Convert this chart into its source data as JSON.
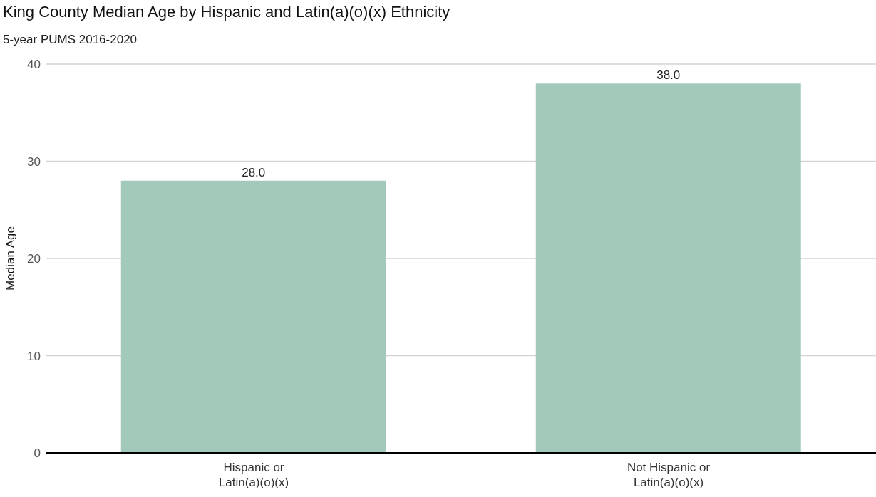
{
  "chart_data": {
    "type": "bar",
    "title": "King County Median Age by Hispanic and Latin(a)(o)(x) Ethnicity",
    "subtitle": "5-year PUMS 2016-2020",
    "ylabel": "Median Age",
    "categories": [
      "Hispanic or Latin(a)(o)(x)",
      "Not Hispanic or Latin(a)(o)(x)"
    ],
    "values": [
      28,
      38
    ],
    "value_labels": [
      "28.0",
      "38.0"
    ],
    "color": "#a3c9bb",
    "ylim": [
      0,
      40
    ],
    "yticks": [
      0,
      10,
      20,
      30,
      40
    ],
    "grid": "y",
    "legend": false
  }
}
